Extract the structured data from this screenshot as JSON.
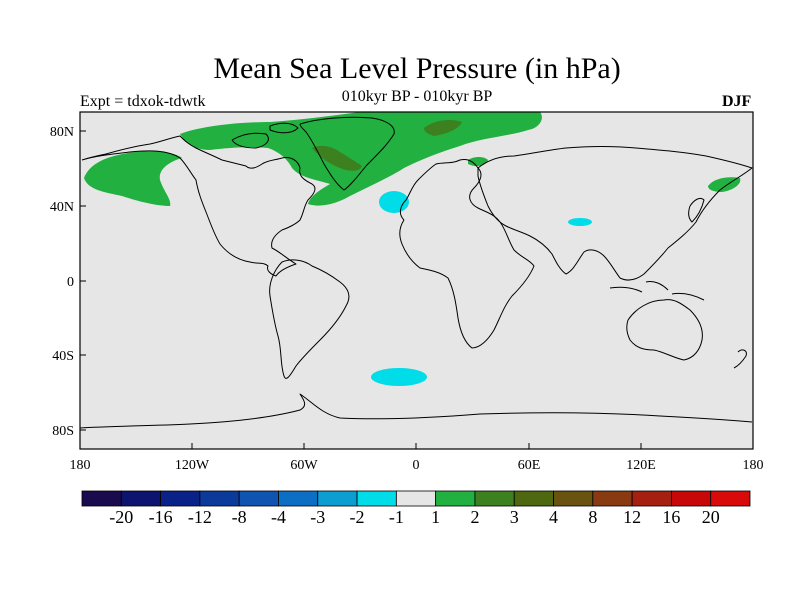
{
  "title": "Mean Sea Level Pressure (in hPa)",
  "subtitle_left": "Expt = tdxok-tdwtk",
  "subtitle_center": "010kyr BP - 010kyr BP",
  "subtitle_right": "DJF",
  "lat_labels": [
    "80N",
    "40N",
    "0",
    "40S",
    "80S"
  ],
  "lon_labels": [
    "180",
    "120W",
    "60W",
    "0",
    "60E",
    "120E",
    "180"
  ],
  "colorbar": {
    "labels": [
      "-20",
      "-16",
      "-12",
      "-8",
      "-4",
      "-3",
      "-2",
      "-1",
      "1",
      "2",
      "3",
      "4",
      "8",
      "12",
      "16",
      "20"
    ],
    "colors": [
      "#1a0a4e",
      "#0c1470",
      "#0a2288",
      "#0c3a9a",
      "#0e54b0",
      "#0d6fc4",
      "#0c9ed0",
      "#00dce8",
      "#e6e6e6",
      "#22b040",
      "#3c8020",
      "#4e6810",
      "#6a5210",
      "#8a3a10",
      "#a62010",
      "#c80808",
      "#d80a0a"
    ]
  },
  "colors": {
    "land_ocean": "#e6e6e6",
    "coast": "#000000"
  }
}
